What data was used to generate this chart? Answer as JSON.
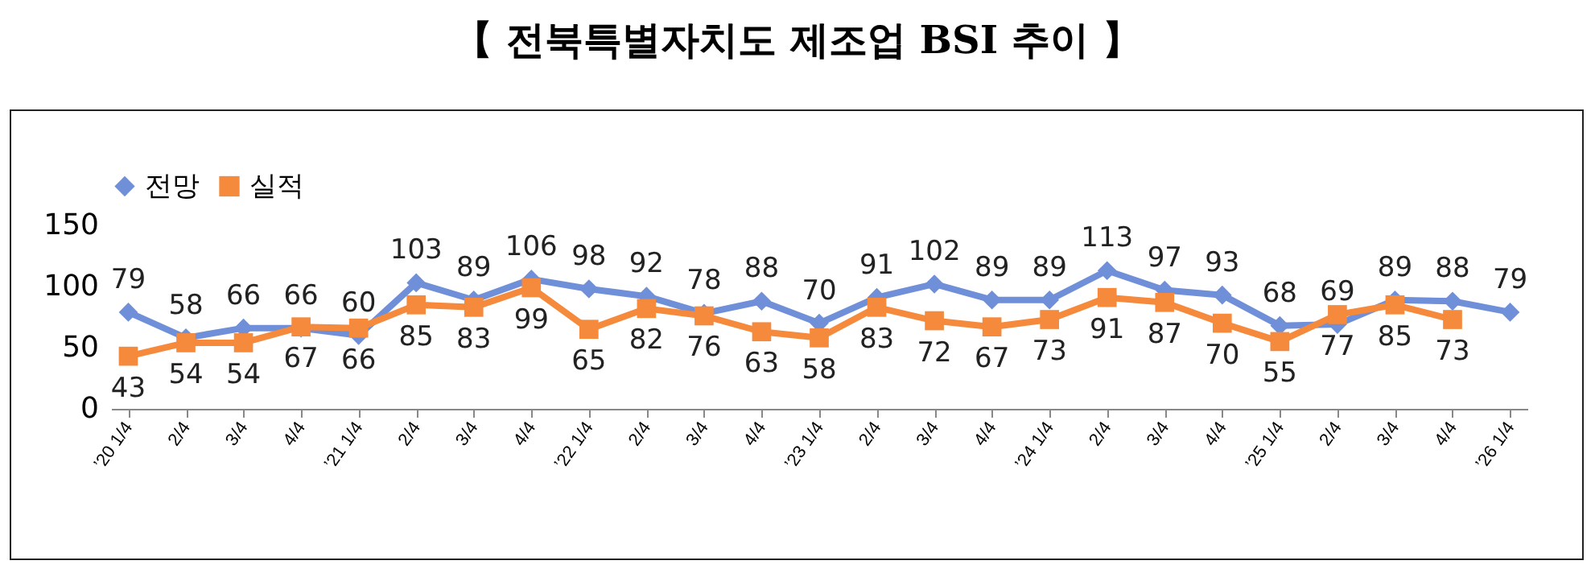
{
  "chart_data": {
    "type": "line",
    "title": "【 전북특별자치도 제조업 BSI 추이 】",
    "categories": [
      "’20 1/4",
      "2/4",
      "3/4",
      "4/4",
      "’21 1/4",
      "2/4",
      "3/4",
      "4/4",
      "’22 1/4",
      "2/4",
      "3/4",
      "4/4",
      "’23 1/4",
      "2/4",
      "3/4",
      "4/4",
      "’24 1/4",
      "2/4",
      "3/4",
      "4/4",
      "’25 1/4",
      "2/4",
      "3/4",
      "4/4",
      "’26 1/4"
    ],
    "series": [
      {
        "name": "전망",
        "color": "#6f8fd8",
        "marker": "diamond",
        "values": [
          79,
          58,
          66,
          66,
          60,
          103,
          89,
          106,
          98,
          92,
          78,
          88,
          70,
          91,
          102,
          89,
          89,
          113,
          97,
          93,
          68,
          69,
          89,
          88,
          79
        ]
      },
      {
        "name": "실적",
        "color": "#f5893c",
        "marker": "square",
        "values": [
          43,
          54,
          54,
          67,
          66,
          85,
          83,
          99,
          65,
          82,
          76,
          63,
          58,
          83,
          72,
          67,
          73,
          91,
          87,
          70,
          55,
          77,
          85,
          73,
          null
        ]
      }
    ],
    "ylim": [
      0,
      150
    ],
    "yticks": [
      0,
      50,
      100,
      150
    ],
    "grid": false,
    "legend": "top",
    "data_labels": true
  }
}
